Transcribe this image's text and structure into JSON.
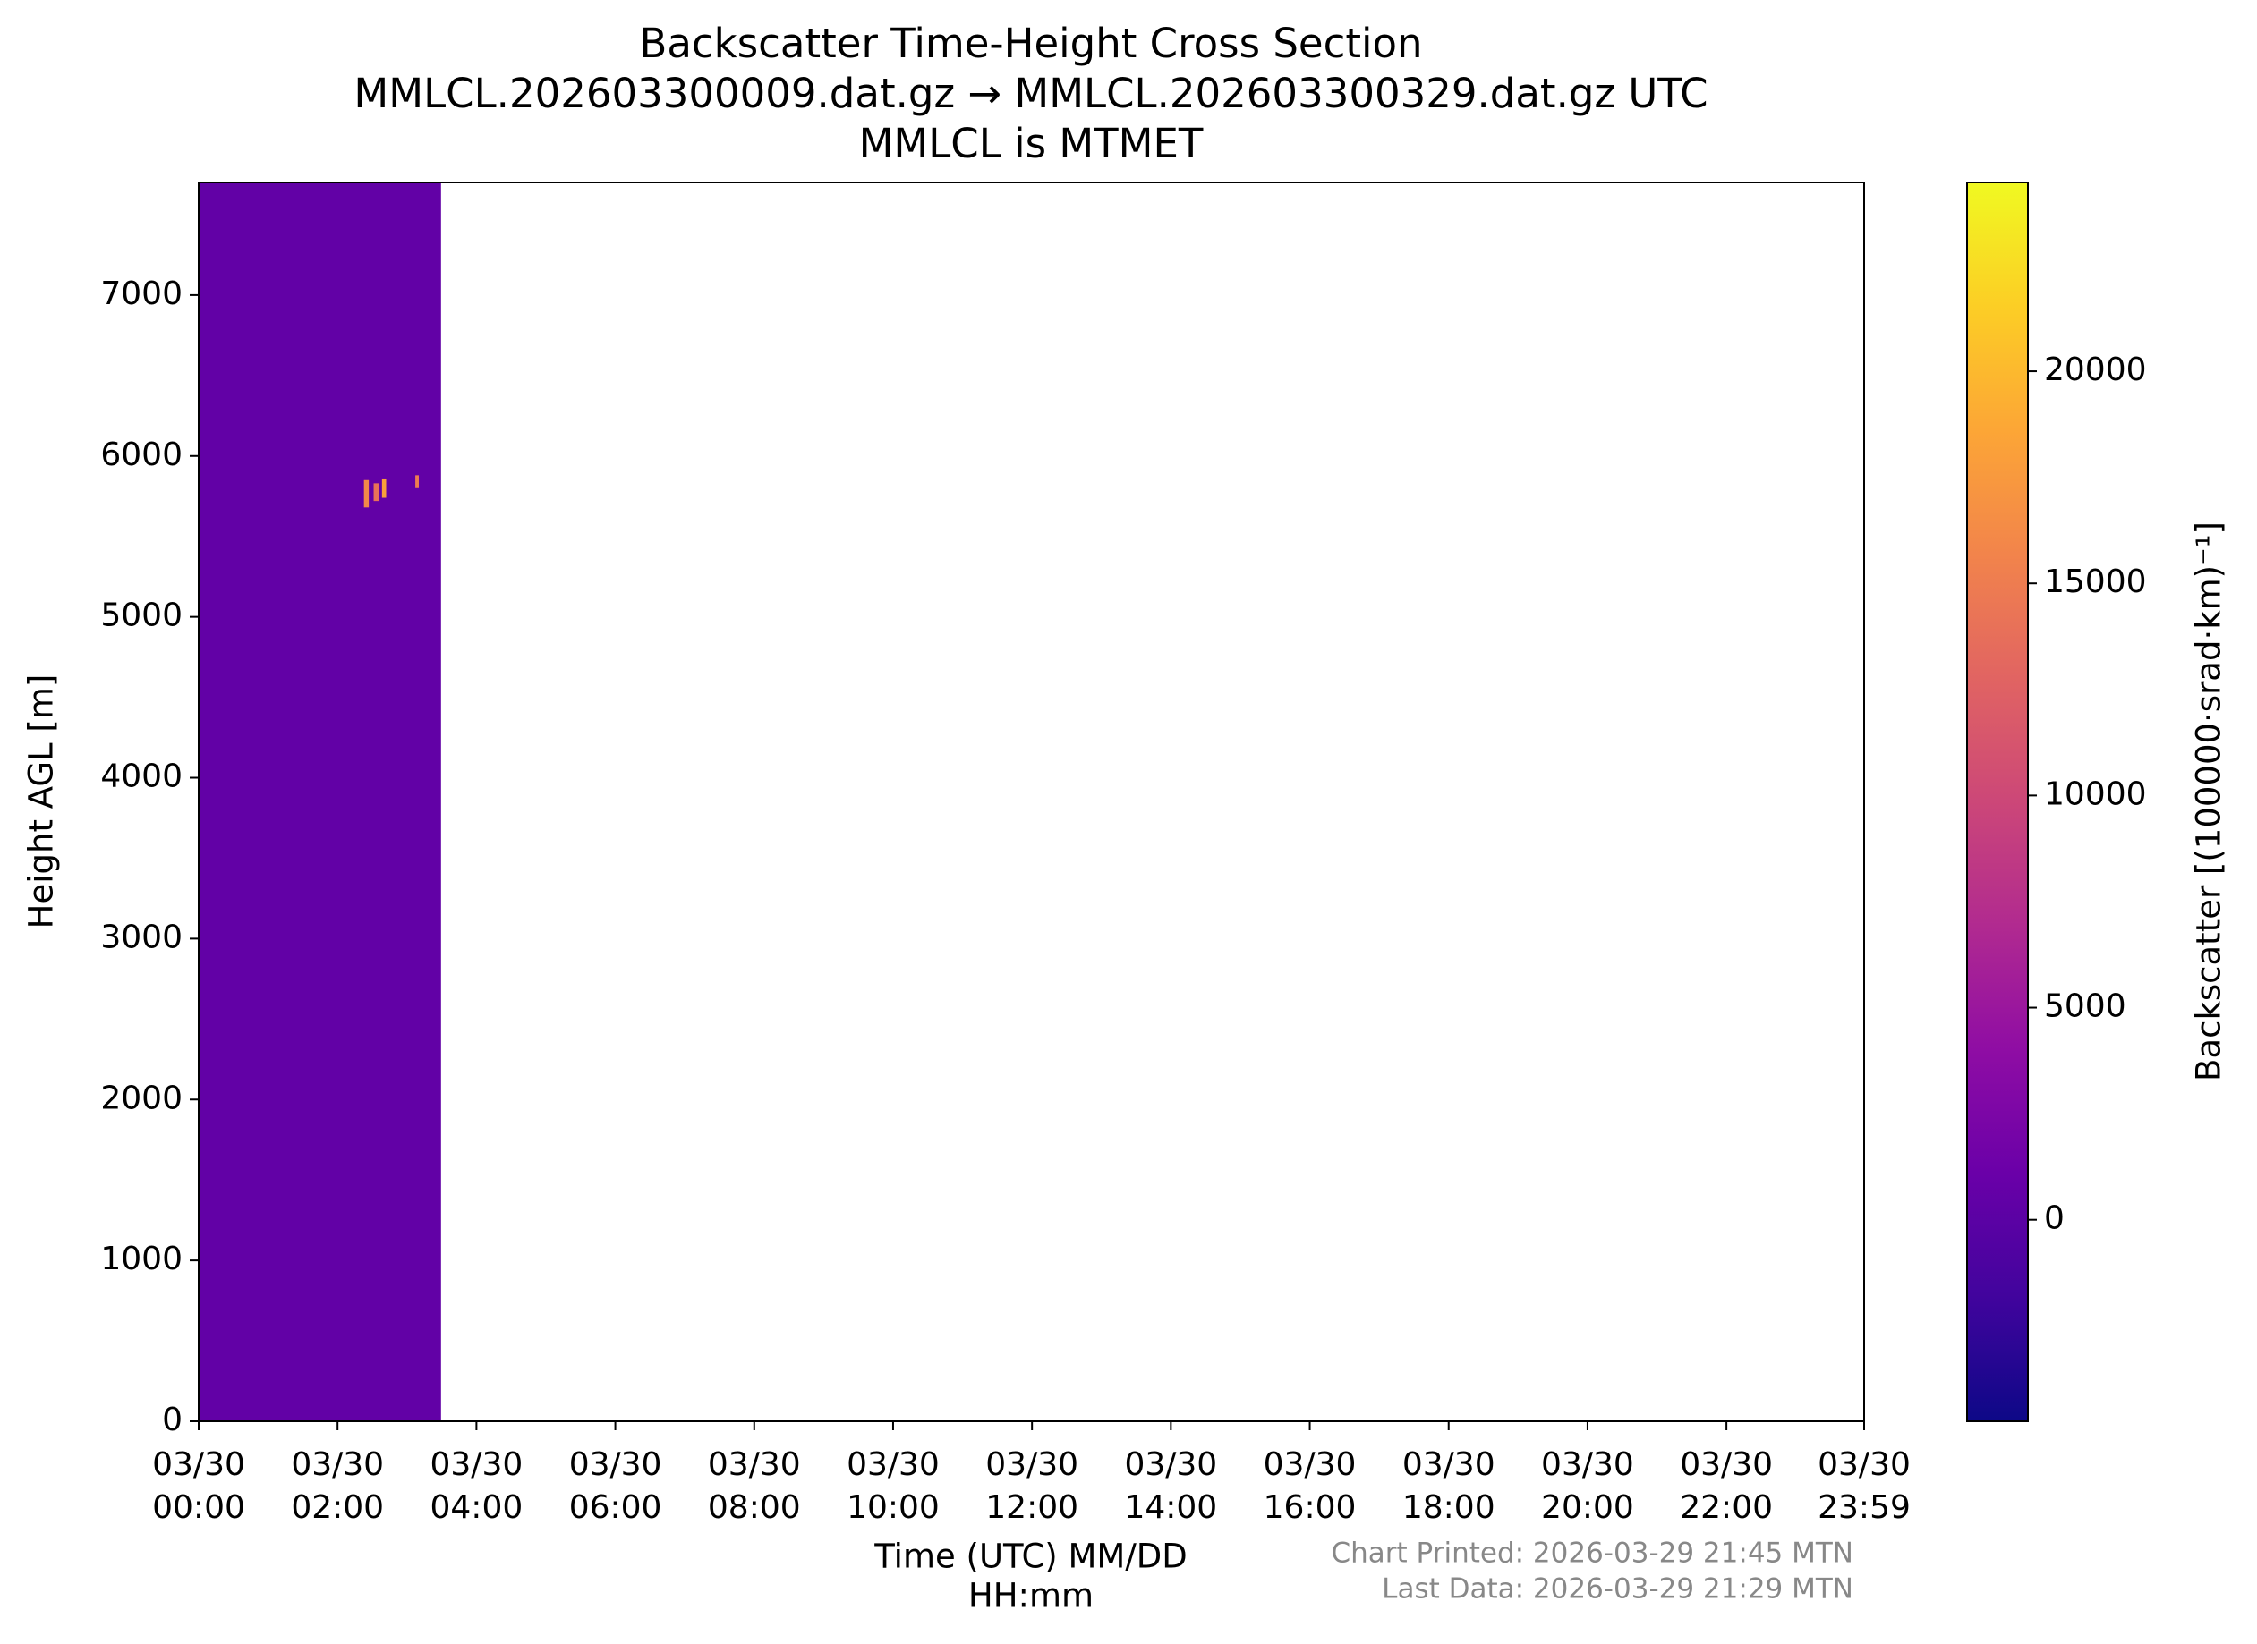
{
  "chart_data": {
    "type": "heatmap",
    "title": [
      "Backscatter Time-Height Cross Section",
      "MMLCL.202603300009.dat.gz → MMLCL.202603300329.dat.gz UTC",
      "MMLCL is MTMET"
    ],
    "xlabel": [
      "Time (UTC) MM/DD",
      "HH:mm"
    ],
    "ylabel": "Height AGL [m]",
    "colorbar_label": "Backscatter [(100000·srad·km)⁻¹]",
    "notes": [
      "Chart Printed: 2026-03-29 21:45 MTN",
      "Last Data: 2026-03-29 21:29 MTN"
    ],
    "colormap": "plasma",
    "xlim": [
      0,
      23.983
    ],
    "xticks": [
      {
        "value": 0,
        "label": "03/30\n00:00"
      },
      {
        "value": 2,
        "label": "03/30\n02:00"
      },
      {
        "value": 4,
        "label": "03/30\n04:00"
      },
      {
        "value": 6,
        "label": "03/30\n06:00"
      },
      {
        "value": 8,
        "label": "03/30\n08:00"
      },
      {
        "value": 10,
        "label": "03/30\n10:00"
      },
      {
        "value": 12,
        "label": "03/30\n12:00"
      },
      {
        "value": 14,
        "label": "03/30\n14:00"
      },
      {
        "value": 16,
        "label": "03/30\n16:00"
      },
      {
        "value": 18,
        "label": "03/30\n18:00"
      },
      {
        "value": 20,
        "label": "03/30\n20:00"
      },
      {
        "value": 22,
        "label": "03/30\n22:00"
      },
      {
        "value": 23.983,
        "label": "03/30\n23:59"
      }
    ],
    "ylim": [
      0,
      7700
    ],
    "yticks": [
      0,
      1000,
      2000,
      3000,
      4000,
      5000,
      6000,
      7000
    ],
    "clim": [
      -4750,
      24450
    ],
    "cticks": [
      0,
      5000,
      10000,
      15000,
      20000
    ],
    "cells": [
      {
        "x": [
          0,
          3.49
        ],
        "y": [
          0,
          7700
        ],
        "value": 500
      },
      {
        "x": [
          2.38,
          2.45
        ],
        "y": [
          5680,
          5850
        ],
        "value": 16000
      },
      {
        "x": [
          2.52,
          2.6
        ],
        "y": [
          5720,
          5830
        ],
        "value": 14000
      },
      {
        "x": [
          2.64,
          2.7
        ],
        "y": [
          5740,
          5860
        ],
        "value": 18000
      },
      {
        "x": [
          3.12,
          3.17
        ],
        "y": [
          5800,
          5880
        ],
        "value": 15000
      }
    ]
  }
}
